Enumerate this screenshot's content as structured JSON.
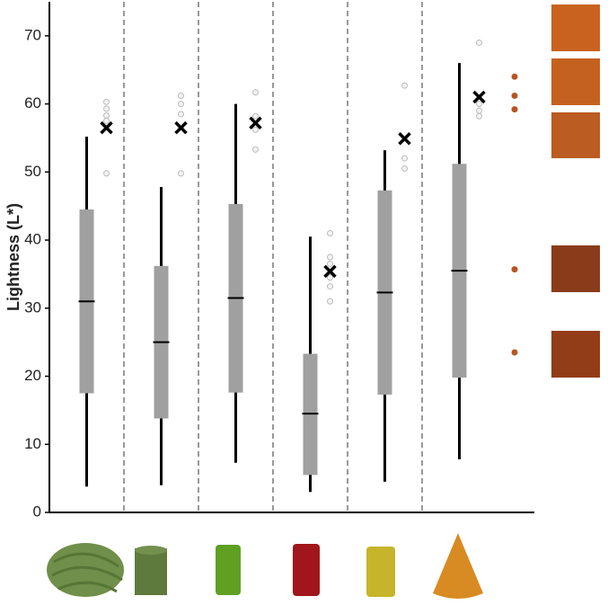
{
  "chart_data": {
    "type": "box",
    "y_label": "Lightness (L*)",
    "ylim": [
      0,
      75
    ],
    "yticks": [
      0,
      10,
      20,
      30,
      40,
      50,
      60,
      70
    ],
    "box_color": "#a0a0a0",
    "whisker_color": "#000000",
    "mean_color": "#000000",
    "outlier_color": "#bbbbbb",
    "groups": [
      {
        "whisker_low": 3.8,
        "q1": 17.5,
        "median": 31,
        "q3": 44.5,
        "whisker_high": 55.2,
        "mean": 56.5,
        "outliers": [
          60.3,
          59.3,
          58.3,
          57.5,
          49.8
        ]
      },
      {
        "whisker_low": 4,
        "q1": 13.8,
        "median": 25,
        "q3": 36.2,
        "whisker_high": 47.8,
        "mean": 56.5,
        "outliers": [
          61.2,
          60,
          58.5,
          49.8
        ]
      },
      {
        "whisker_low": 7.3,
        "q1": 17.6,
        "median": 31.5,
        "q3": 45.3,
        "whisker_high": 60,
        "mean": 57.2,
        "outliers": [
          61.7,
          58.2,
          56.2,
          53.3
        ]
      },
      {
        "whisker_low": 3,
        "q1": 5.5,
        "median": 14.5,
        "q3": 23.3,
        "whisker_high": 40.5,
        "mean": 35.4,
        "outliers": [
          41,
          37.5,
          36.5,
          34.5,
          33.2,
          31
        ]
      },
      {
        "whisker_low": 4.5,
        "q1": 17.3,
        "median": 32.3,
        "q3": 47.3,
        "whisker_high": 53.2,
        "mean": 54.9,
        "outliers": [
          62.7,
          52,
          50.5
        ]
      },
      {
        "whisker_low": 7.8,
        "q1": 19.8,
        "median": 35.5,
        "q3": 51.2,
        "whisker_high": 66,
        "mean": 61,
        "outliers": [
          69,
          60,
          59,
          58.2
        ]
      }
    ],
    "reference_color": "#b5561f",
    "reference_values": [
      64,
      61.2,
      59.2,
      35.7,
      23.5
    ]
  }
}
